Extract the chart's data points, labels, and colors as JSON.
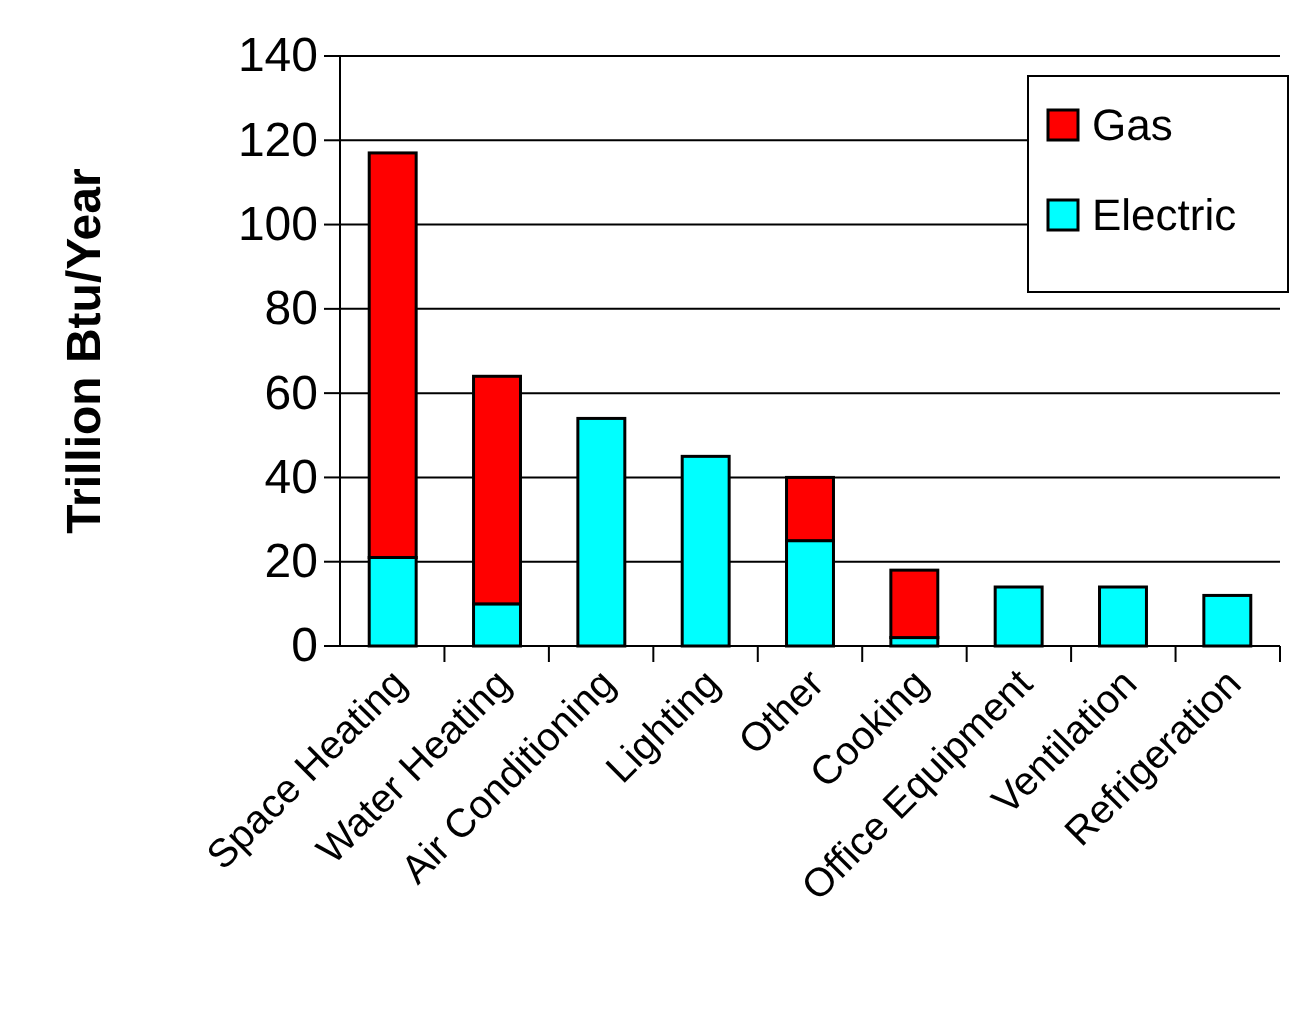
{
  "chart_data": {
    "type": "bar",
    "stacked": true,
    "ylabel": "Trillion Btu/Year",
    "categories": [
      "Space Heating",
      "Water Heating",
      "Air Conditioning",
      "Lighting",
      "Other",
      "Cooking",
      "Office Equipment",
      "Ventilation",
      "Refrigeration"
    ],
    "series": [
      {
        "name": "Electric",
        "color": "#00ffff",
        "values": [
          21,
          10,
          54,
          45,
          25,
          2,
          14,
          14,
          12
        ]
      },
      {
        "name": "Gas",
        "color": "#ff0000",
        "values": [
          96,
          54,
          0,
          0,
          15,
          16,
          0,
          0,
          0
        ]
      }
    ],
    "ylim": [
      0,
      140
    ],
    "yticks": [
      0,
      20,
      40,
      60,
      80,
      100,
      120,
      140
    ],
    "grid": "y",
    "legend": "top right"
  }
}
